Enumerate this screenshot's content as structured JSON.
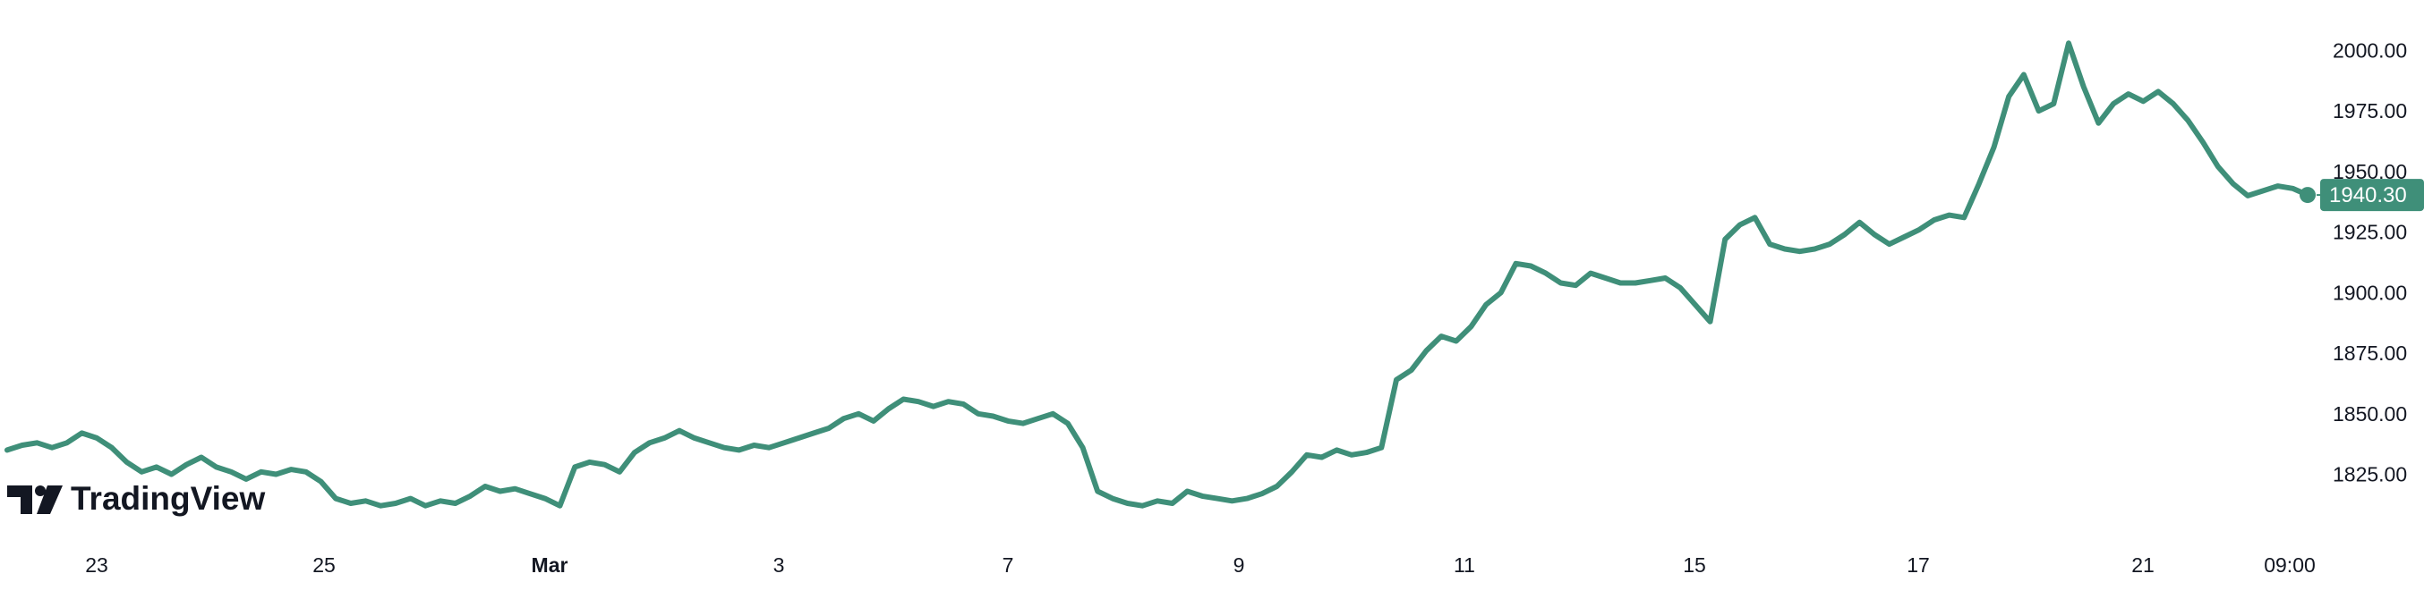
{
  "brand": {
    "name": "TradingView",
    "text_color": "#131722"
  },
  "chart_data": {
    "type": "line",
    "line_color": "#3f8f79",
    "title": "",
    "xlabel": "",
    "ylabel": "",
    "grid": false,
    "x_axis_labels": [
      "23",
      "25",
      "Mar",
      "3",
      "7",
      "9",
      "11",
      "15",
      "17",
      "21",
      "09:00"
    ],
    "y_axis_labels": [
      "2000.00",
      "1975.00",
      "1950.00",
      "1925.00",
      "1900.00",
      "1875.00",
      "1850.00",
      "1825.00"
    ],
    "y_ticks": [
      2000,
      1975,
      1950,
      1925,
      1900,
      1875,
      1850,
      1825
    ],
    "ylim": [
      1813,
      2009
    ],
    "last_price": {
      "label": "1940.30",
      "value": 1940.3,
      "color": "#3f8f79"
    },
    "series": [
      {
        "values": [
          1835,
          1837,
          1838,
          1836,
          1838,
          1842,
          1840,
          1836,
          1830,
          1826,
          1828,
          1825,
          1829,
          1832,
          1828,
          1826,
          1823,
          1826,
          1825,
          1827,
          1826,
          1822,
          1815,
          1813,
          1814,
          1812,
          1813,
          1815,
          1812,
          1814,
          1813,
          1816,
          1820,
          1818,
          1819,
          1817,
          1815,
          1812,
          1828,
          1830,
          1829,
          1826,
          1834,
          1838,
          1840,
          1843,
          1840,
          1838,
          1836,
          1835,
          1837,
          1836,
          1838,
          1840,
          1842,
          1844,
          1848,
          1850,
          1847,
          1852,
          1856,
          1855,
          1853,
          1855,
          1854,
          1850,
          1849,
          1847,
          1846,
          1848,
          1850,
          1846,
          1836,
          1818,
          1815,
          1813,
          1812,
          1814,
          1813,
          1818,
          1816,
          1815,
          1814,
          1815,
          1817,
          1820,
          1826,
          1833,
          1832,
          1835,
          1833,
          1834,
          1836,
          1864,
          1868,
          1876,
          1882,
          1880,
          1886,
          1895,
          1900,
          1912,
          1911,
          1908,
          1904,
          1903,
          1908,
          1906,
          1904,
          1904,
          1905,
          1906,
          1902,
          1895,
          1888,
          1922,
          1928,
          1931,
          1920,
          1918,
          1917,
          1918,
          1920,
          1924,
          1929,
          1924,
          1920,
          1923,
          1926,
          1930,
          1932,
          1931,
          1945,
          1960,
          1981,
          1990,
          1975,
          1978,
          2003,
          1985,
          1970,
          1978,
          1982,
          1979,
          1983,
          1978,
          1971,
          1962,
          1952,
          1945,
          1940,
          1942,
          1944,
          1943,
          1940.3
        ]
      }
    ]
  }
}
